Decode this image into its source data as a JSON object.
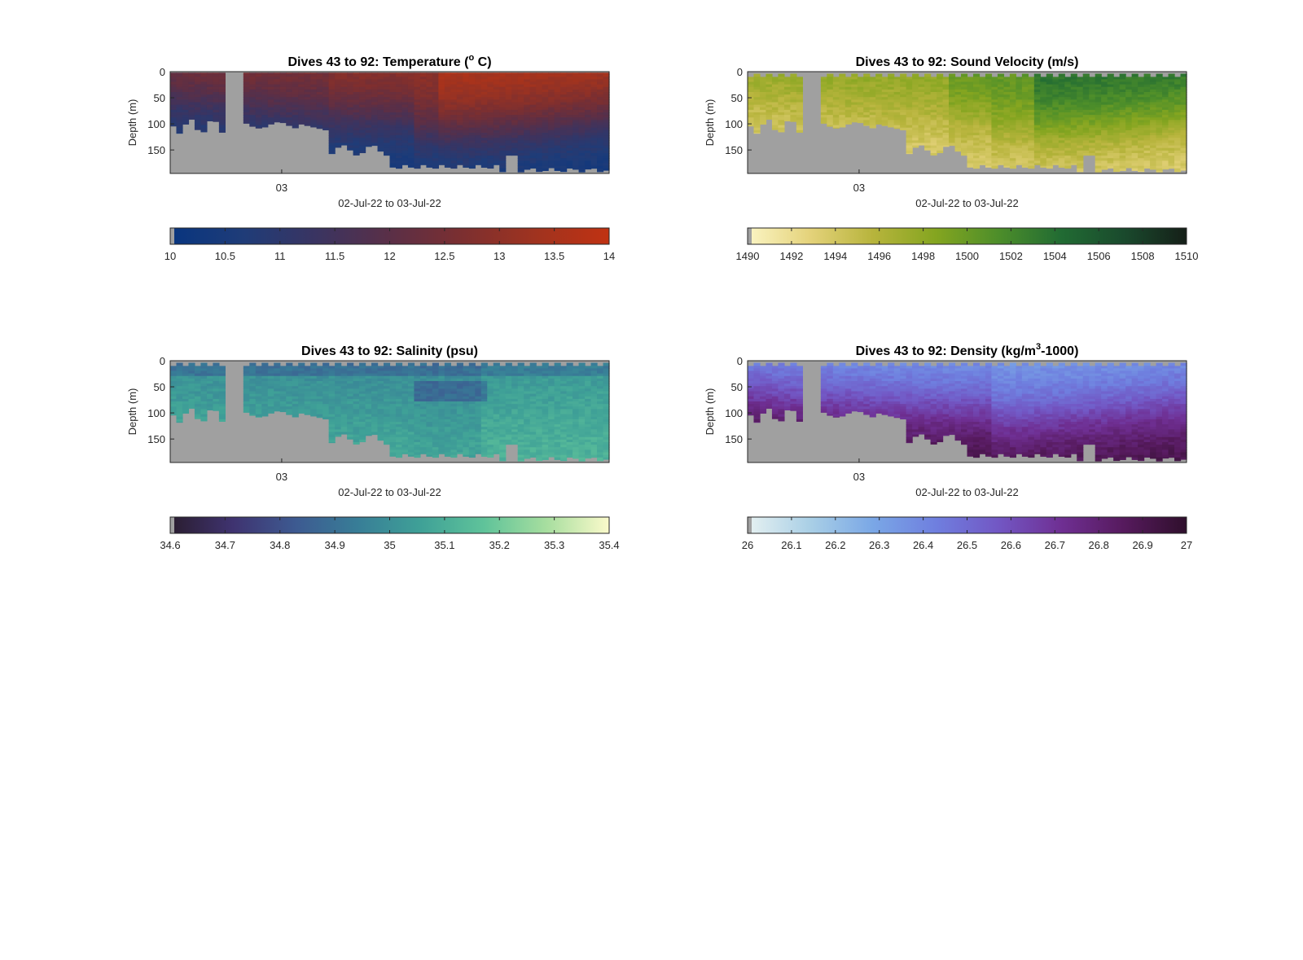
{
  "colors": {
    "background": "#ffffff",
    "mask": "#a0a0a0",
    "axis": "#262626"
  },
  "chart_data": [
    {
      "type": "heatmap",
      "title_main": "Dives 43 to 92: Temperature (",
      "title_sup": "o",
      "title_end": " C)",
      "xlabel": "02-Jul-22 to 03-Jul-22",
      "ylabel": "Depth (m)",
      "xticks": [
        "03"
      ],
      "yticks": [
        "0",
        "50",
        "100",
        "150"
      ],
      "ylim": [
        0,
        195
      ],
      "colormap": [
        "#08357f",
        "#1f3c78",
        "#3a3461",
        "#5a2f47",
        "#7c2f30",
        "#a0331f",
        "#c03212"
      ],
      "colorbar": {
        "range": [
          10,
          14
        ],
        "ticks": [
          "10",
          "10.5",
          "11",
          "11.5",
          "12",
          "12.5",
          "13",
          "13.5",
          "14"
        ]
      },
      "field": "temperature"
    },
    {
      "type": "heatmap",
      "title_main": "Dives 43 to 92: Sound Velocity (m/s)",
      "title_sup": "",
      "title_end": "",
      "xlabel": "02-Jul-22 to 03-Jul-22",
      "ylabel": "Depth (m)",
      "xticks": [
        "03"
      ],
      "yticks": [
        "0",
        "50",
        "100",
        "150"
      ],
      "ylim": [
        0,
        195
      ],
      "colormap": [
        "#fbf5c4",
        "#e4d27a",
        "#b7b43c",
        "#84a520",
        "#4d8e2a",
        "#216b33",
        "#1a4a2d",
        "#151f18"
      ],
      "colorbar": {
        "range": [
          1490,
          1510
        ],
        "ticks": [
          "1490",
          "1492",
          "1494",
          "1496",
          "1498",
          "1500",
          "1502",
          "1504",
          "1506",
          "1508",
          "1510"
        ]
      },
      "field": "sound"
    },
    {
      "type": "heatmap",
      "title_main": "Dives 43 to 92: Salinity (psu)",
      "title_sup": "",
      "title_end": "",
      "xlabel": "02-Jul-22 to 03-Jul-22",
      "ylabel": "Depth (m)",
      "xticks": [
        "03"
      ],
      "yticks": [
        "0",
        "50",
        "100",
        "150"
      ],
      "ylim": [
        0,
        195
      ],
      "colormap": [
        "#2a1d2f",
        "#3f3370",
        "#3d5a91",
        "#387e97",
        "#3fa197",
        "#5fc39a",
        "#a7de9f",
        "#fbfacb"
      ],
      "colorbar": {
        "range": [
          34.6,
          35.4
        ],
        "ticks": [
          "34.6",
          "34.7",
          "34.8",
          "34.9",
          "35",
          "35.1",
          "35.2",
          "35.3",
          "35.4"
        ]
      },
      "field": "salinity"
    },
    {
      "type": "heatmap",
      "title_main": "Dives 43 to 92: Density (kg/m",
      "title_sup": "3",
      "title_end": "-1000)",
      "xlabel": "02-Jul-22 to 03-Jul-22",
      "ylabel": "Depth (m)",
      "xticks": [
        "03"
      ],
      "yticks": [
        "0",
        "50",
        "100",
        "150"
      ],
      "ylim": [
        0,
        195
      ],
      "colormap": [
        "#e6f1f1",
        "#a9cfe6",
        "#7aa7e6",
        "#6f7fdf",
        "#7257c4",
        "#6f2f93",
        "#561a5d",
        "#2f0f2c"
      ],
      "colorbar": {
        "range": [
          26,
          27
        ],
        "ticks": [
          "26",
          "26.1",
          "26.2",
          "26.3",
          "26.4",
          "26.5",
          "26.6",
          "26.7",
          "26.8",
          "26.9",
          "27"
        ]
      },
      "field": "density"
    }
  ]
}
